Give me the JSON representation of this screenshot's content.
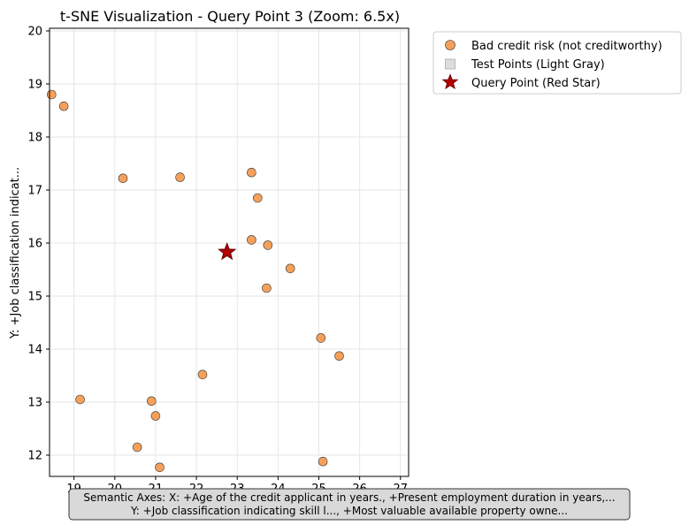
{
  "chart_data": {
    "type": "scatter",
    "title": "t-SNE Visualization - Query Point 3 (Zoom: 6.5x)",
    "xlabel": "",
    "ylabel": "Y: +Job classification indicat...",
    "xlim": [
      18.4,
      27.2
    ],
    "ylim": [
      11.6,
      20.05
    ],
    "x_ticks": [
      19,
      20,
      21,
      22,
      23,
      24,
      25,
      26,
      27
    ],
    "y_ticks": [
      12,
      13,
      14,
      15,
      16,
      17,
      18,
      19,
      20
    ],
    "grid": true,
    "legend_position": "outside-top-right",
    "series": [
      {
        "name": "Bad credit risk (not creditworthy)",
        "marker": "circle",
        "color": "#f5a05a",
        "edge_color": "#333333",
        "points": [
          {
            "x": 18.45,
            "y": 18.8
          },
          {
            "x": 18.75,
            "y": 18.58
          },
          {
            "x": 19.15,
            "y": 13.05
          },
          {
            "x": 20.2,
            "y": 17.22
          },
          {
            "x": 21.6,
            "y": 17.24
          },
          {
            "x": 20.55,
            "y": 12.15
          },
          {
            "x": 20.9,
            "y": 13.02
          },
          {
            "x": 21.0,
            "y": 12.74
          },
          {
            "x": 21.1,
            "y": 11.77
          },
          {
            "x": 22.15,
            "y": 13.52
          },
          {
            "x": 23.35,
            "y": 17.33
          },
          {
            "x": 23.5,
            "y": 16.85
          },
          {
            "x": 23.35,
            "y": 16.06
          },
          {
            "x": 23.75,
            "y": 15.96
          },
          {
            "x": 23.72,
            "y": 15.15
          },
          {
            "x": 24.3,
            "y": 15.52
          },
          {
            "x": 25.05,
            "y": 14.21
          },
          {
            "x": 25.5,
            "y": 13.87
          },
          {
            "x": 25.1,
            "y": 11.88
          }
        ]
      },
      {
        "name": "Test Points (Light Gray)",
        "marker": "square",
        "color": "#dddddd",
        "edge_color": "#aaaaaa",
        "points": []
      },
      {
        "name": "Query Point (Red Star)",
        "marker": "star",
        "color": "#b50000",
        "edge_color": "#6e0000",
        "points": [
          {
            "x": 22.75,
            "y": 15.83
          }
        ]
      }
    ],
    "annotation": {
      "line1": "Semantic Axes: X: +Age of the credit applicant in years., +Present employment duration in years,...",
      "line2": "Y: +Job classification indicating skill l..., +Most valuable available property owne..."
    }
  }
}
